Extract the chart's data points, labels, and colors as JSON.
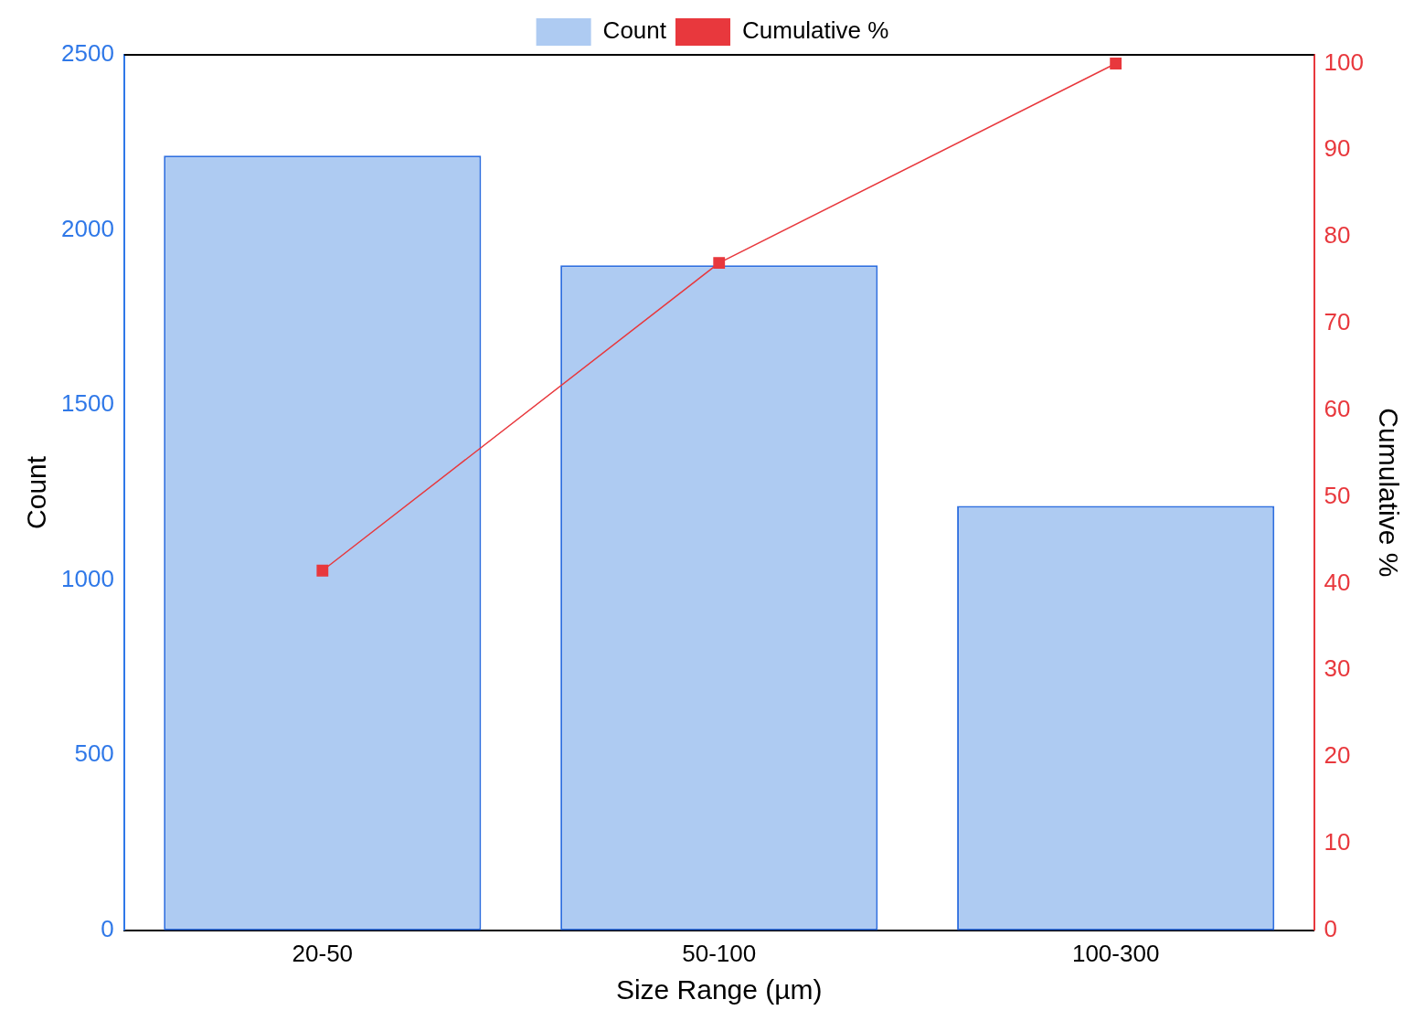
{
  "chart_data": {
    "type": "bar",
    "xlabel": "Size Range (µm)",
    "ylabel": "Count",
    "y2label": "Cumulative %",
    "categories": [
      "20-50",
      "50-100",
      "100-300"
    ],
    "series": [
      {
        "name": "Count",
        "color": "#aecbf2",
        "values": [
          2212,
          1899,
          1212
        ]
      },
      {
        "name": "Cumulative %",
        "type": "line",
        "axis": "y2",
        "color": "#e8383d",
        "values": [
          41.5,
          77,
          100
        ]
      }
    ],
    "ylim": [
      0,
      2500
    ],
    "yticks": [
      0,
      500,
      1000,
      1500,
      2000,
      2500
    ],
    "y2lim": [
      0,
      101
    ],
    "y2ticks": [
      0,
      10,
      20,
      30,
      40,
      50,
      60,
      70,
      80,
      90,
      100
    ],
    "grid": false,
    "legend": "top",
    "marker": "square",
    "line_style": "solid"
  }
}
